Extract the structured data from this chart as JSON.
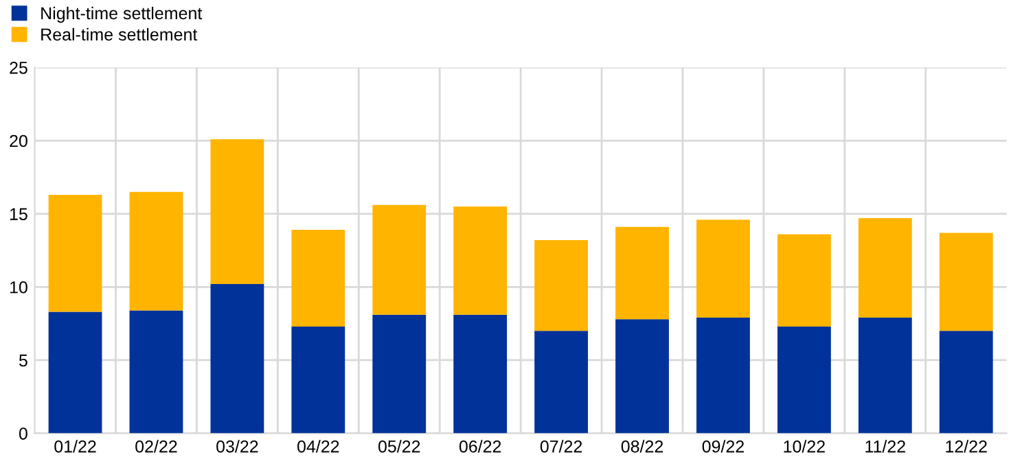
{
  "chart_data": {
    "type": "bar",
    "stacked": true,
    "categories": [
      "01/22",
      "02/22",
      "03/22",
      "04/22",
      "05/22",
      "06/22",
      "07/22",
      "08/22",
      "09/22",
      "10/22",
      "11/22",
      "12/22"
    ],
    "series": [
      {
        "name": "Night-time settlement",
        "color": "#003299",
        "values": [
          8.3,
          8.4,
          10.2,
          7.3,
          8.1,
          8.1,
          7.0,
          7.8,
          7.9,
          7.3,
          7.9,
          7.0
        ]
      },
      {
        "name": "Real-time settlement",
        "color": "#ffb400",
        "values": [
          8.0,
          8.1,
          9.9,
          6.6,
          7.5,
          7.4,
          6.2,
          6.3,
          6.7,
          6.3,
          6.8,
          6.7
        ]
      }
    ],
    "ylim": [
      0,
      25
    ],
    "yticks": [
      0,
      5,
      10,
      15,
      20,
      25
    ],
    "grid": true,
    "legend": "top left"
  }
}
